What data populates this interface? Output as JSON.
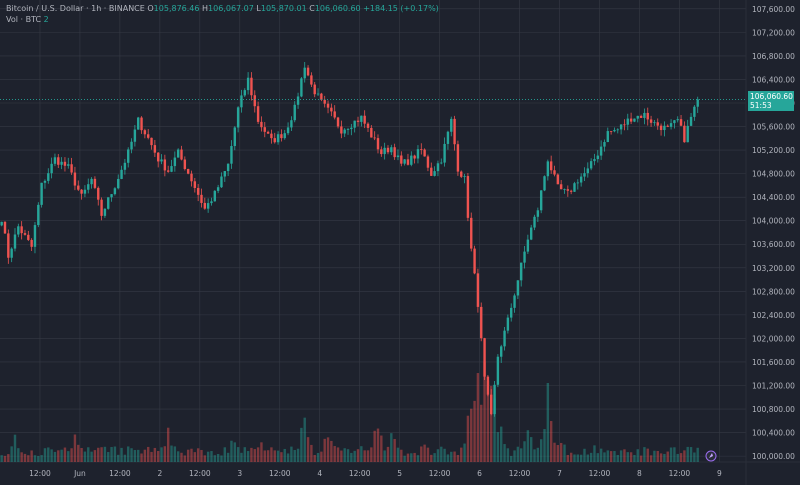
{
  "legend": {
    "symbol": "Bitcoin / U.S. Dollar · 1h · BINANCE",
    "o_label": "O",
    "o": "105,876.46",
    "h_label": "H",
    "h": "106,067.07",
    "l_label": "L",
    "l": "105,870.01",
    "c_label": "C",
    "c": "106,060.60",
    "chg": "+184.15 (+0.17%)",
    "vol_label": "Vol · BTC",
    "vol_value": "2"
  },
  "price_tag": {
    "price": "106,060.60",
    "countdown": "51:53"
  },
  "colors": {
    "background": "#1e222d",
    "up": "#26a69a",
    "down": "#ef5350",
    "grid": "#363a45",
    "text": "#b2b5be"
  },
  "chart_data": {
    "type": "candlestick",
    "y_ticks": [
      "107,600.00",
      "107,200.00",
      "106,800.00",
      "106,400.00",
      "106,000.00",
      "105,600.00",
      "105,200.00",
      "104,800.00",
      "104,400.00",
      "104,000.00",
      "103,600.00",
      "103,200.00",
      "102,800.00",
      "102,400.00",
      "102,000.00",
      "101,600.00",
      "101,200.00",
      "100,800.00",
      "100,400.00",
      "100,000.00"
    ],
    "ylim": [
      99900,
      107750
    ],
    "x_ticks": [
      "12:00",
      "Jun",
      "12:00",
      "2",
      "12:00",
      "3",
      "12:00",
      "4",
      "12:00",
      "5",
      "12:00",
      "6",
      "12:00",
      "7",
      "12:00",
      "8",
      "12:00",
      "9"
    ],
    "x_tick_hours": [
      12,
      24,
      36,
      48,
      60,
      72,
      84,
      96,
      108,
      120,
      132,
      144,
      156,
      168,
      180,
      192,
      204,
      216
    ],
    "xlim": [
      0,
      224
    ],
    "grid": true,
    "last_price": 106060.6,
    "keypoints": [
      [
        0,
        104050
      ],
      [
        2,
        103400
      ],
      [
        5,
        103900
      ],
      [
        9,
        103550
      ],
      [
        12,
        104600
      ],
      [
        16,
        105050
      ],
      [
        20,
        104900
      ],
      [
        24,
        104400
      ],
      [
        27,
        104700
      ],
      [
        30,
        104100
      ],
      [
        34,
        104600
      ],
      [
        38,
        105150
      ],
      [
        41,
        105700
      ],
      [
        44,
        105400
      ],
      [
        47,
        105050
      ],
      [
        50,
        104850
      ],
      [
        53,
        105150
      ],
      [
        57,
        104700
      ],
      [
        61,
        104200
      ],
      [
        64,
        104450
      ],
      [
        68,
        104950
      ],
      [
        71,
        105900
      ],
      [
        74,
        106400
      ],
      [
        77,
        105700
      ],
      [
        81,
        105350
      ],
      [
        85,
        105500
      ],
      [
        88,
        105900
      ],
      [
        91,
        106650
      ],
      [
        93,
        106300
      ],
      [
        96,
        106000
      ],
      [
        99,
        105800
      ],
      [
        102,
        105550
      ],
      [
        105,
        105650
      ],
      [
        108,
        105750
      ],
      [
        111,
        105450
      ],
      [
        114,
        105150
      ],
      [
        117,
        105250
      ],
      [
        120,
        104950
      ],
      [
        123,
        105050
      ],
      [
        126,
        105200
      ],
      [
        129,
        104800
      ],
      [
        132,
        105050
      ],
      [
        135,
        105700
      ],
      [
        137,
        104900
      ],
      [
        139,
        104700
      ],
      [
        141,
        103500
      ],
      [
        143,
        102600
      ],
      [
        145,
        101300
      ],
      [
        147,
        100650
      ],
      [
        149,
        101700
      ],
      [
        152,
        102300
      ],
      [
        155,
        103000
      ],
      [
        158,
        103700
      ],
      [
        161,
        104200
      ],
      [
        164,
        105050
      ],
      [
        167,
        104550
      ],
      [
        170,
        104450
      ],
      [
        173,
        104700
      ],
      [
        176,
        104850
      ],
      [
        179,
        105150
      ],
      [
        182,
        105500
      ],
      [
        185,
        105550
      ],
      [
        189,
        105750
      ],
      [
        193,
        105800
      ],
      [
        196,
        105650
      ],
      [
        200,
        105550
      ],
      [
        203,
        105700
      ],
      [
        205,
        105400
      ],
      [
        207,
        105750
      ],
      [
        209,
        106060.6
      ]
    ],
    "volume_peaks": [
      [
        4,
        30
      ],
      [
        22,
        28
      ],
      [
        50,
        35
      ],
      [
        70,
        32
      ],
      [
        78,
        25
      ],
      [
        91,
        60
      ],
      [
        98,
        38
      ],
      [
        113,
        48
      ],
      [
        117,
        36
      ],
      [
        127,
        22
      ],
      [
        141,
        85
      ],
      [
        143,
        95
      ],
      [
        145,
        135
      ],
      [
        147,
        100
      ],
      [
        150,
        40
      ],
      [
        158,
        50
      ],
      [
        164,
        80
      ],
      [
        168,
        30
      ],
      [
        178,
        18
      ],
      [
        198,
        14
      ],
      [
        208,
        6
      ]
    ]
  }
}
